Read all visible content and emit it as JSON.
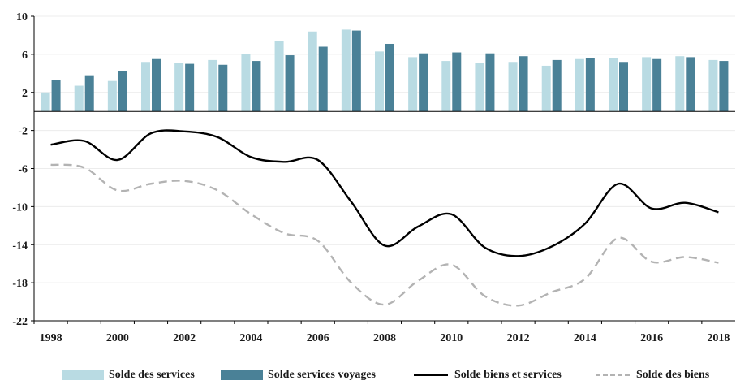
{
  "chart_data": {
    "type": "bar+line",
    "title": "",
    "xlabel": "",
    "ylabel": "",
    "ylim": [
      -22,
      10
    ],
    "yticks": [
      10,
      6,
      2,
      -2,
      -6,
      -10,
      -14,
      -18,
      -22
    ],
    "xlim": [
      1997.5,
      2018.5
    ],
    "xtick_labels": [
      "1998",
      "2000",
      "2002",
      "2004",
      "2006",
      "2008",
      "2010",
      "2012",
      "2014",
      "2016",
      "2018"
    ],
    "xtick_values": [
      1998,
      2000,
      2002,
      2004,
      2006,
      2008,
      2010,
      2012,
      2014,
      2016,
      2018
    ],
    "years": [
      1998,
      1999,
      2000,
      2001,
      2002,
      2003,
      2004,
      2005,
      2006,
      2007,
      2008,
      2009,
      2010,
      2011,
      2012,
      2013,
      2014,
      2015,
      2016,
      2017,
      2018
    ],
    "grid": true,
    "legend_position": "bottom",
    "series": [
      {
        "name": "Solde des services",
        "kind": "bar",
        "color": "#b9dbe3",
        "values": [
          2.0,
          2.7,
          3.2,
          5.2,
          5.1,
          5.4,
          6.0,
          7.4,
          8.4,
          8.6,
          6.3,
          5.7,
          5.3,
          5.1,
          5.2,
          4.8,
          5.5,
          5.6,
          5.7,
          5.8,
          5.4
        ]
      },
      {
        "name": "Solde services voyages",
        "kind": "bar",
        "color": "#4a8197",
        "values": [
          3.3,
          3.8,
          4.2,
          5.5,
          5.0,
          4.9,
          5.3,
          5.9,
          6.8,
          8.5,
          7.1,
          6.1,
          6.2,
          6.1,
          5.8,
          5.4,
          5.6,
          5.2,
          5.5,
          5.7,
          5.3
        ]
      },
      {
        "name": "Solde biens et services",
        "kind": "line",
        "color": "#000000",
        "dash": "",
        "values": [
          -3.5,
          -3.1,
          -5.1,
          -2.3,
          -2.1,
          -2.7,
          -4.8,
          -5.3,
          -5.1,
          -9.5,
          -14.1,
          -12.1,
          -10.8,
          -14.3,
          -15.2,
          -14.2,
          -11.8,
          -7.6,
          -10.2,
          -9.6,
          -10.6
        ]
      },
      {
        "name": "Solde des biens",
        "kind": "line",
        "color": "#b3b3b3",
        "dash": "10,6",
        "values": [
          -5.6,
          -5.9,
          -8.3,
          -7.6,
          -7.3,
          -8.3,
          -10.8,
          -12.8,
          -13.6,
          -18.0,
          -20.3,
          -17.8,
          -16.1,
          -19.4,
          -20.4,
          -19.0,
          -17.6,
          -13.3,
          -15.8,
          -15.3,
          -15.9
        ]
      }
    ]
  }
}
